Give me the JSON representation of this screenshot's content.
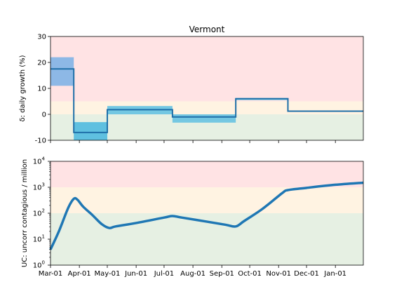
{
  "chart_data": [
    {
      "type": "line",
      "title": "Vermont",
      "ylabel": "δ: daily growth (%)",
      "ylim": [
        -10,
        30
      ],
      "yticks": [
        -10,
        0,
        10,
        20,
        30
      ],
      "x_range": [
        "2020-03-01",
        "2021-01-31"
      ],
      "grid": false,
      "zones": [
        {
          "name": "red",
          "from": 5,
          "to": 30,
          "color": "#ffe3e4"
        },
        {
          "name": "amber",
          "from": 0,
          "to": 5,
          "color": "#fff3e2"
        },
        {
          "name": "green",
          "from": -10,
          "to": 0,
          "color": "#e6f0e3"
        }
      ],
      "series": [
        {
          "style": "step",
          "color": "#1f6fa8",
          "segments": [
            {
              "start": "2020-03-01",
              "end": "2020-03-26",
              "value": 17.5,
              "low": 11,
              "high": 22,
              "band_color": "#8db8e6"
            },
            {
              "start": "2020-03-26",
              "end": "2020-05-01",
              "value": -7,
              "low": -10,
              "high": -3,
              "band_color": "#5fc0e0"
            },
            {
              "start": "2020-05-01",
              "end": "2020-07-10",
              "value": 1.8,
              "low": 0,
              "high": 3.2,
              "band_color": "#74c7e2"
            },
            {
              "start": "2020-07-10",
              "end": "2020-09-16",
              "value": -1,
              "low": -3.2,
              "high": 0,
              "band_color": "#74c7e2"
            },
            {
              "start": "2020-09-16",
              "end": "2020-11-11",
              "value": 6,
              "low": 5.5,
              "high": 6.3,
              "band_color": "#74c7e2"
            },
            {
              "start": "2020-11-11",
              "end": "2021-01-31",
              "value": 1.2,
              "low": 1.0,
              "high": 1.4,
              "band_color": "#74c7e2"
            }
          ]
        }
      ]
    },
    {
      "type": "line",
      "ylabel": "UC: uncorr contagious / million",
      "yscale": "log",
      "ylim": [
        1,
        10000
      ],
      "yticks": [
        {
          "value": 1,
          "base": "10",
          "exp": "0"
        },
        {
          "value": 10,
          "base": "10",
          "exp": "1"
        },
        {
          "value": 100,
          "base": "10",
          "exp": "2"
        },
        {
          "value": 1000,
          "base": "10",
          "exp": "3"
        },
        {
          "value": 10000,
          "base": "10",
          "exp": "4"
        }
      ],
      "x_range": [
        "2020-03-01",
        "2021-01-31"
      ],
      "xticks": [
        "Mar-01",
        "Apr-01",
        "May-01",
        "Jun-01",
        "Jul-01",
        "Aug-01",
        "Sep-01",
        "Oct-01",
        "Nov-01",
        "Dec-01",
        "Jan-01"
      ],
      "xtick_dates": [
        "2020-03-01",
        "2020-04-01",
        "2020-05-01",
        "2020-06-01",
        "2020-07-01",
        "2020-08-01",
        "2020-09-01",
        "2020-10-01",
        "2020-11-01",
        "2020-12-01",
        "2021-01-01"
      ],
      "grid": false,
      "zones": [
        {
          "name": "red",
          "from": 1000,
          "to": 10000,
          "color": "#ffe3e4"
        },
        {
          "name": "amber",
          "from": 100,
          "to": 1000,
          "color": "#fff3e2"
        },
        {
          "name": "green",
          "from": 1,
          "to": 100,
          "color": "#e6f0e3"
        }
      ],
      "series": [
        {
          "color": "#1f77b4",
          "points": [
            [
              "2020-03-01",
              4
            ],
            [
              "2020-03-10",
              20
            ],
            [
              "2020-03-20",
              160
            ],
            [
              "2020-03-26",
              360
            ],
            [
              "2020-03-30",
              330
            ],
            [
              "2020-04-05",
              180
            ],
            [
              "2020-04-15",
              85
            ],
            [
              "2020-04-25",
              38
            ],
            [
              "2020-05-03",
              27
            ],
            [
              "2020-05-10",
              31
            ],
            [
              "2020-06-01",
              42
            ],
            [
              "2020-07-01",
              68
            ],
            [
              "2020-07-10",
              78
            ],
            [
              "2020-07-20",
              68
            ],
            [
              "2020-08-15",
              48
            ],
            [
              "2020-09-05",
              36
            ],
            [
              "2020-09-16",
              31
            ],
            [
              "2020-09-25",
              50
            ],
            [
              "2020-10-15",
              150
            ],
            [
              "2020-11-05",
              600
            ],
            [
              "2020-11-11",
              780
            ],
            [
              "2020-12-01",
              950
            ],
            [
              "2021-01-01",
              1250
            ],
            [
              "2021-01-31",
              1500
            ]
          ]
        }
      ]
    }
  ]
}
